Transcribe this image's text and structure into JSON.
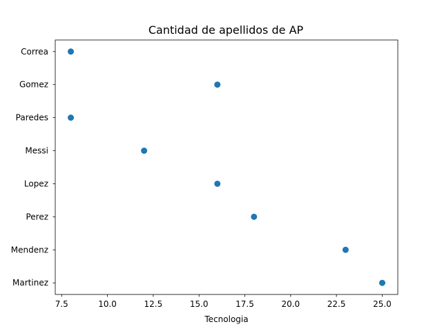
{
  "chart_data": {
    "type": "scatter",
    "title": "Cantidad de apellidos de AP",
    "xlabel": "Tecnologia",
    "ylabel": "",
    "categories": [
      "Martinez",
      "Mendenz",
      "Perez",
      "Lopez",
      "Messi",
      "Paredes",
      "Gomez",
      "Correa"
    ],
    "x_values": [
      25,
      23,
      18,
      16,
      12,
      8,
      16,
      8
    ],
    "xlim": [
      7.15,
      25.85
    ],
    "xticks": [
      7.5,
      10.0,
      12.5,
      15.0,
      17.5,
      20.0,
      22.5,
      25.0
    ],
    "xtick_labels": [
      "7.5",
      "10.0",
      "12.5",
      "15.0",
      "17.5",
      "20.0",
      "22.5",
      "25.0"
    ],
    "grid": false,
    "marker_color": "#1f77b4"
  }
}
